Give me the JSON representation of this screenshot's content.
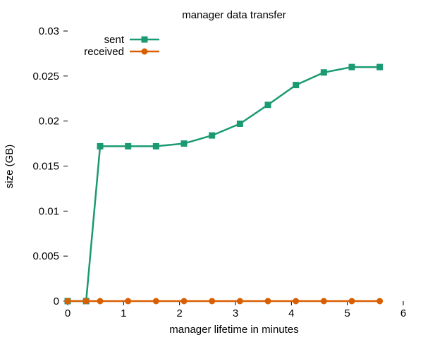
{
  "chart_data": {
    "type": "line",
    "title": "manager data transfer",
    "xlabel": "manager lifetime in minutes",
    "ylabel": "size (GB)",
    "xlim": [
      0,
      6
    ],
    "ylim": [
      0,
      0.03
    ],
    "xticks": [
      0,
      1,
      2,
      3,
      4,
      5,
      6
    ],
    "xtick_labels": [
      "0",
      "1",
      "2",
      "3",
      "4",
      "5",
      "6"
    ],
    "yticks": [
      0,
      0.005,
      0.01,
      0.015,
      0.02,
      0.025,
      0.03
    ],
    "ytick_labels": [
      "0",
      "0.005",
      "0.01",
      "0.015",
      "0.02",
      "0.025",
      "0.03"
    ],
    "grid": false,
    "legend_position": "top-left",
    "series": [
      {
        "name": "sent",
        "color": "#1a9a72",
        "marker": "square",
        "x": [
          0,
          0.33,
          0.58,
          1.08,
          1.58,
          2.08,
          2.58,
          3.08,
          3.58,
          4.08,
          4.58,
          5.08,
          5.58
        ],
        "y": [
          0,
          0,
          0.0172,
          0.0172,
          0.0172,
          0.0175,
          0.0184,
          0.0197,
          0.0218,
          0.024,
          0.0254,
          0.026,
          0.026
        ]
      },
      {
        "name": "received",
        "color": "#d95f02",
        "marker": "circle",
        "x": [
          0,
          0.33,
          0.58,
          1.08,
          1.58,
          2.08,
          2.58,
          3.08,
          3.58,
          4.08,
          4.58,
          5.08,
          5.58
        ],
        "y": [
          0,
          0,
          0,
          0,
          0,
          0,
          0,
          0,
          0,
          0,
          0,
          0,
          0
        ]
      }
    ]
  }
}
